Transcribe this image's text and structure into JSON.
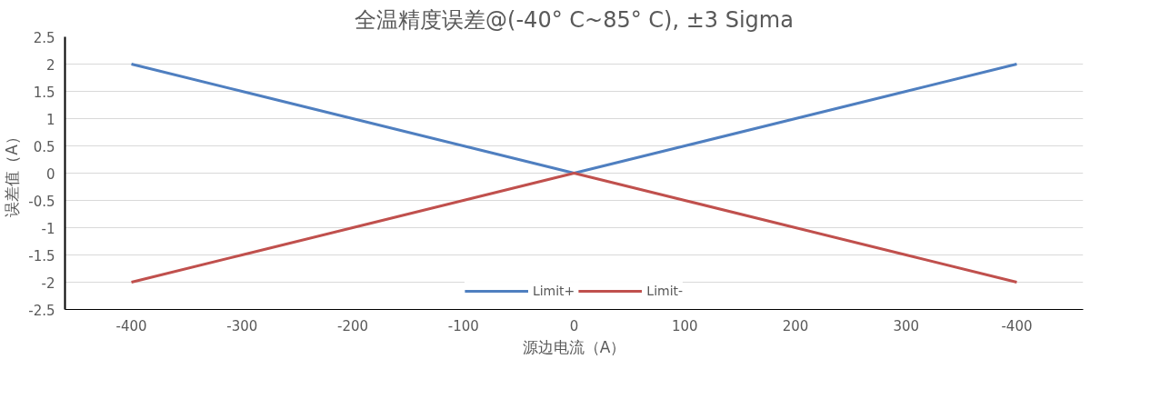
{
  "chart_data": {
    "type": "line",
    "title": "全温精度误差@(-40° C~85° C), ±3 Sigma",
    "xlabel": "源边电流（A）",
    "ylabel": "误差值（A）",
    "categories": [
      "-400",
      "-300",
      "-200",
      "-100",
      "0",
      "100",
      "200",
      "300",
      "-400"
    ],
    "series": [
      {
        "name": "Limit+",
        "color": "#4f7fc0",
        "values": [
          2,
          1.5,
          1,
          0.5,
          0,
          0.5,
          1,
          1.5,
          2
        ]
      },
      {
        "name": "Limit-",
        "color": "#c0504d",
        "values": [
          -2,
          -1.5,
          -1,
          -0.5,
          0,
          -0.5,
          -1,
          -1.5,
          -2
        ]
      }
    ],
    "ylim": [
      -2.5,
      2.5
    ],
    "yticks": [
      2.5,
      2,
      1.5,
      1,
      0.5,
      0,
      -0.5,
      -1,
      -1.5,
      -2,
      -2.5
    ],
    "grid": "y",
    "legend": "bottom",
    "line_style": "solid"
  }
}
